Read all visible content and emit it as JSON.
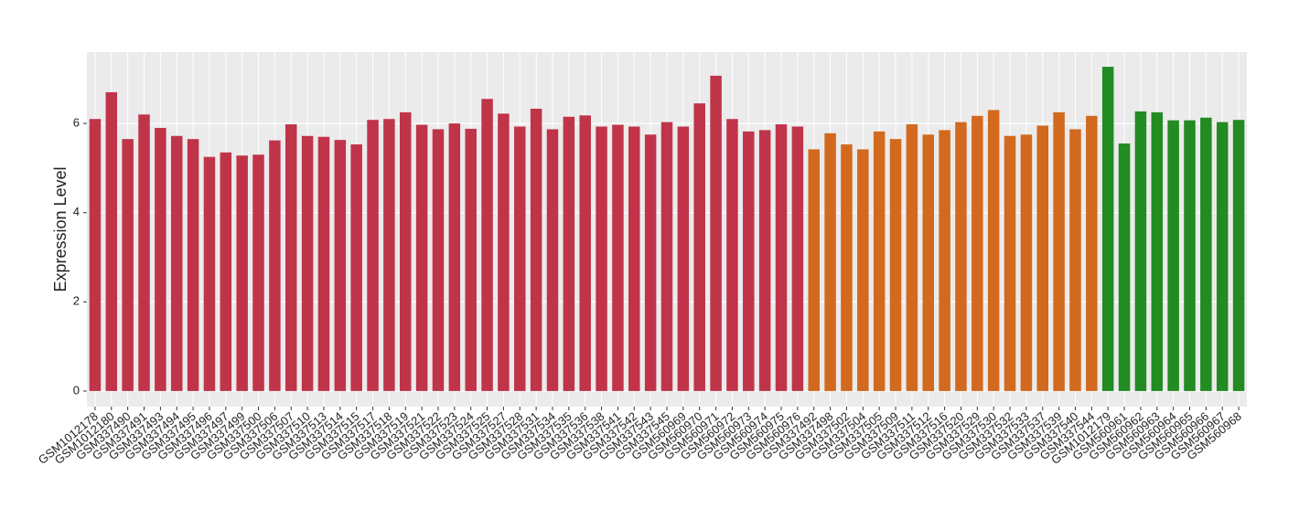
{
  "chart_data": {
    "type": "bar",
    "y_label": "Expression Level",
    "categories": [
      "GSM1012178",
      "GSM1012180",
      "GSM337490",
      "GSM337491",
      "GSM337493",
      "GSM337494",
      "GSM337495",
      "GSM337496",
      "GSM337497",
      "GSM337499",
      "GSM337500",
      "GSM337506",
      "GSM337507",
      "GSM337510",
      "GSM337513",
      "GSM337514",
      "GSM337515",
      "GSM337517",
      "GSM337518",
      "GSM337519",
      "GSM337521",
      "GSM337522",
      "GSM337523",
      "GSM337524",
      "GSM337525",
      "GSM337527",
      "GSM337528",
      "GSM337531",
      "GSM337534",
      "GSM337535",
      "GSM337536",
      "GSM337538",
      "GSM337541",
      "GSM337542",
      "GSM337543",
      "GSM337545",
      "GSM560969",
      "GSM560970",
      "GSM560971",
      "GSM560972",
      "GSM560973",
      "GSM560974",
      "GSM560975",
      "GSM560976",
      "GSM337492",
      "GSM337498",
      "GSM337502",
      "GSM337504",
      "GSM337505",
      "GSM337509",
      "GSM337511",
      "GSM337512",
      "GSM337516",
      "GSM337520",
      "GSM337529",
      "GSM337530",
      "GSM337532",
      "GSM337533",
      "GSM337537",
      "GSM337539",
      "GSM337540",
      "GSM337544",
      "GSM1012179",
      "GSM560961",
      "GSM560962",
      "GSM560963",
      "GSM560964",
      "GSM560965",
      "GSM560966",
      "GSM560967",
      "GSM560968"
    ],
    "values": [
      6.1,
      6.7,
      5.65,
      6.2,
      5.9,
      5.72,
      5.65,
      5.25,
      5.35,
      5.28,
      5.3,
      5.62,
      5.98,
      5.72,
      5.7,
      5.63,
      5.53,
      6.08,
      6.1,
      6.25,
      5.97,
      5.87,
      6.0,
      5.88,
      6.55,
      6.22,
      5.93,
      6.33,
      5.87,
      6.15,
      6.18,
      5.93,
      5.97,
      5.93,
      5.75,
      6.03,
      5.93,
      6.45,
      7.07,
      6.1,
      5.82,
      5.85,
      5.98,
      5.93,
      5.42,
      5.78,
      5.53,
      5.42,
      5.82,
      5.65,
      5.98,
      5.75,
      5.85,
      6.03,
      6.17,
      6.3,
      5.72,
      5.75,
      5.95,
      6.25,
      5.87,
      6.17,
      7.27,
      5.55,
      6.27,
      6.25,
      6.07,
      6.07,
      6.13,
      6.03,
      6.08
    ],
    "colors": [
      "#c0344a",
      "#c0344a",
      "#c0344a",
      "#c0344a",
      "#c0344a",
      "#c0344a",
      "#c0344a",
      "#c0344a",
      "#c0344a",
      "#c0344a",
      "#c0344a",
      "#c0344a",
      "#c0344a",
      "#c0344a",
      "#c0344a",
      "#c0344a",
      "#c0344a",
      "#c0344a",
      "#c0344a",
      "#c0344a",
      "#c0344a",
      "#c0344a",
      "#c0344a",
      "#c0344a",
      "#c0344a",
      "#c0344a",
      "#c0344a",
      "#c0344a",
      "#c0344a",
      "#c0344a",
      "#c0344a",
      "#c0344a",
      "#c0344a",
      "#c0344a",
      "#c0344a",
      "#c0344a",
      "#c0344a",
      "#c0344a",
      "#c0344a",
      "#c0344a",
      "#c0344a",
      "#c0344a",
      "#c0344a",
      "#c0344a",
      "#d2691e",
      "#d2691e",
      "#d2691e",
      "#d2691e",
      "#d2691e",
      "#d2691e",
      "#d2691e",
      "#d2691e",
      "#d2691e",
      "#d2691e",
      "#d2691e",
      "#d2691e",
      "#d2691e",
      "#d2691e",
      "#d2691e",
      "#d2691e",
      "#d2691e",
      "#d2691e",
      "#228b22",
      "#228b22",
      "#228b22",
      "#228b22",
      "#228b22",
      "#228b22",
      "#228b22",
      "#228b22",
      "#228b22"
    ],
    "ylim": [
      -0.35,
      7.6
    ],
    "yticks": [
      0,
      2,
      4,
      6
    ],
    "grid": true
  }
}
